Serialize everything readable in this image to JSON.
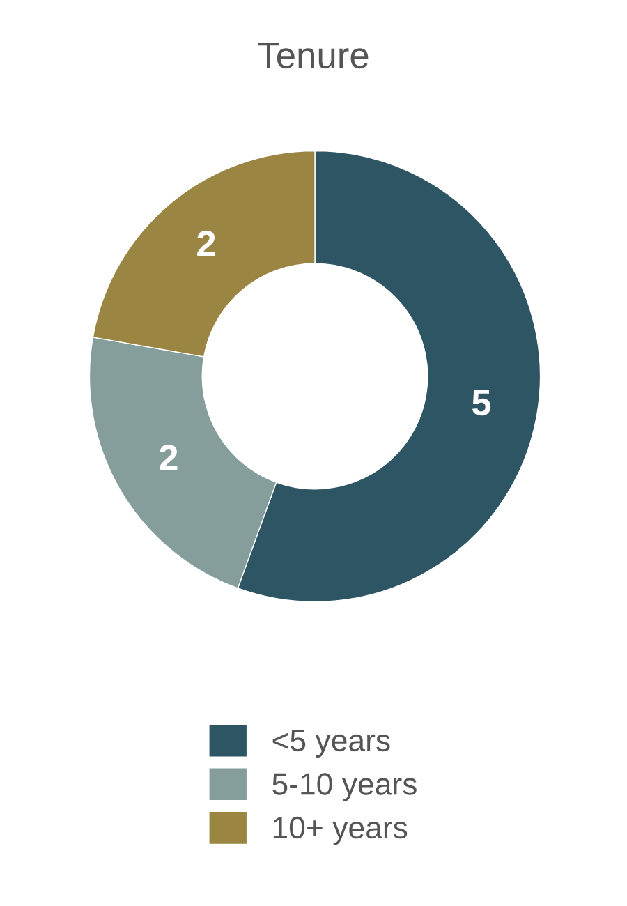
{
  "chart_data": {
    "type": "donut",
    "title": "Tenure",
    "categories": [
      "<5 years",
      "5-10 years",
      "10+ years"
    ],
    "values": [
      5,
      2,
      2
    ],
    "colors": [
      "#2e5564",
      "#869e9b",
      "#9a8542"
    ],
    "data_labels": true,
    "legend": "bottom"
  }
}
